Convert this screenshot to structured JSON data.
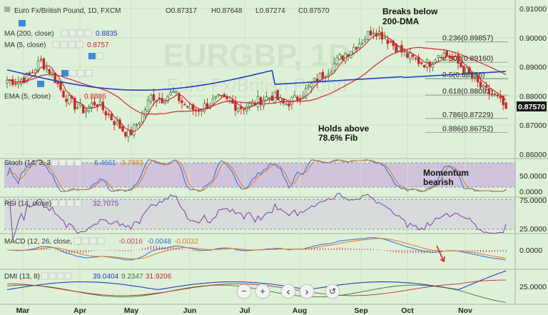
{
  "header": {
    "title": "Euro Fx/British Pound, 1D, FXCM",
    "ohlc": [
      {
        "label": "O",
        "value": "0.87317"
      },
      {
        "label": "H",
        "value": "0.87648"
      },
      {
        "label": "L",
        "value": "0.87274"
      },
      {
        "label": "C",
        "value": "0.87570"
      }
    ]
  },
  "legends": {
    "ma200": {
      "label": "MA (200, close)",
      "value": "0.8835",
      "color": "#1f3fbf"
    },
    "ma5": {
      "label": "MA (5, close)",
      "value": "0.8757",
      "color": "#d0202a"
    },
    "ema": {
      "label": "EMA (5, close)",
      "value": "0.8886",
      "color": "#d0202a"
    },
    "stoch": {
      "label": "Stoch (14, 3, 3)",
      "k": "6.4661",
      "d": "3.7883"
    },
    "rsi": {
      "label": "RSI (14, close)",
      "value": "32.7075"
    },
    "macd": {
      "label": "MACD (12, 26, close, 9)",
      "v1": "-0.0016",
      "v2": "-0.0048",
      "v3": "-0.0032"
    },
    "dmi": {
      "label": "DMI (13, 8)",
      "v1": "39.0404",
      "v2": "9.2347",
      "v3": "31.9206"
    }
  },
  "watermark": {
    "line1": "EURGBP, 1D",
    "line2": "Euro Fx/British Pound"
  },
  "current_price": {
    "value": "0.87570",
    "color": "#1a1a1a"
  },
  "annotations": {
    "breaks": "Breaks below\n200-DMA",
    "holds": "Holds above\n78.6% Fib",
    "momentum": "Momentum\nbearish"
  },
  "fib_levels": [
    {
      "label": "0.236(0.89857)",
      "value": 0.89857,
      "color": "#222222"
    },
    {
      "label": "0.382(0.89160)",
      "value": 0.8916,
      "color": "#222222"
    },
    {
      "label": "0.5(0.88596)",
      "value": 0.88596,
      "color": "#2e8b57"
    },
    {
      "label": "0.618(0.88032)",
      "value": 0.88032,
      "color": "#222222"
    },
    {
      "label": "0.786(0.87229)",
      "value": 0.87229,
      "color": "#222222"
    },
    {
      "label": "0.886(0.86752)",
      "value": 0.86752,
      "color": "#222222"
    }
  ],
  "price_axis": [
    "0.91000",
    "0.90000",
    "0.89000",
    "0.88000",
    "0.87000",
    "0.86000"
  ],
  "stoch_axis": [
    "50.0000",
    "0.0000"
  ],
  "rsi_axis": [
    "75.0000",
    "25.0000"
  ],
  "macd_axis": [
    "0.0000"
  ],
  "dmi_axis": [
    "25.0000"
  ],
  "months": [
    "Mar",
    "Apr",
    "May",
    "Jun",
    "Jul",
    "Aug",
    "Sep",
    "Oct",
    "Nov"
  ],
  "controls": {
    "minus": "−",
    "plus": "+",
    "back": "‹",
    "forward": "›",
    "reset": "↺"
  },
  "colors": {
    "bull": "#2e7d32",
    "bear": "#c62828",
    "ma200": "#1f3fbf",
    "ma": "#d0202a",
    "stoch_k": "#2b6cd4",
    "stoch_d": "#e07a2a",
    "rsi": "#7b3fa0",
    "macd": "#2b6cd4",
    "signal": "#e07a2a",
    "hist": "#d04060",
    "dmi_plus": "#2e7d32",
    "dmi_minus": "#c62828",
    "adx": "#1f3fbf",
    "stoch_band": "#c9b6dc",
    "rsi_band": "#d4d4dc"
  },
  "chart_data": {
    "type": "candlestick",
    "title": "Euro Fx/British Pound, 1D, FXCM",
    "x": [
      "Mar",
      "Apr",
      "May",
      "Jun",
      "Jul",
      "Aug",
      "Sep",
      "Oct",
      "Nov"
    ],
    "ylim": [
      0.86,
      0.91
    ],
    "close_trajectory": [
      0.8855,
      0.885,
      0.887,
      0.892,
      0.888,
      0.881,
      0.877,
      0.875,
      0.878,
      0.874,
      0.87,
      0.8665,
      0.872,
      0.88,
      0.879,
      0.881,
      0.877,
      0.875,
      0.877,
      0.879,
      0.878,
      0.876,
      0.877,
      0.879,
      0.88,
      0.877,
      0.879,
      0.882,
      0.886,
      0.889,
      0.893,
      0.896,
      0.899,
      0.903,
      0.9005,
      0.897,
      0.894,
      0.892,
      0.891,
      0.895,
      0.8935,
      0.89,
      0.886,
      0.882,
      0.88,
      0.8757
    ],
    "series": [
      {
        "name": "MA (200, close)",
        "last": 0.8835
      },
      {
        "name": "MA (5, close)",
        "last": 0.8757
      },
      {
        "name": "EMA (5, close)",
        "last": 0.8886
      }
    ],
    "indicators": {
      "stoch": {
        "k": 6.4661,
        "d": 3.7883
      },
      "rsi": 32.7075,
      "macd": [
        -0.0016,
        -0.0048,
        -0.0032
      ],
      "dmi": [
        39.0404,
        9.2347,
        31.9206
      ]
    }
  }
}
